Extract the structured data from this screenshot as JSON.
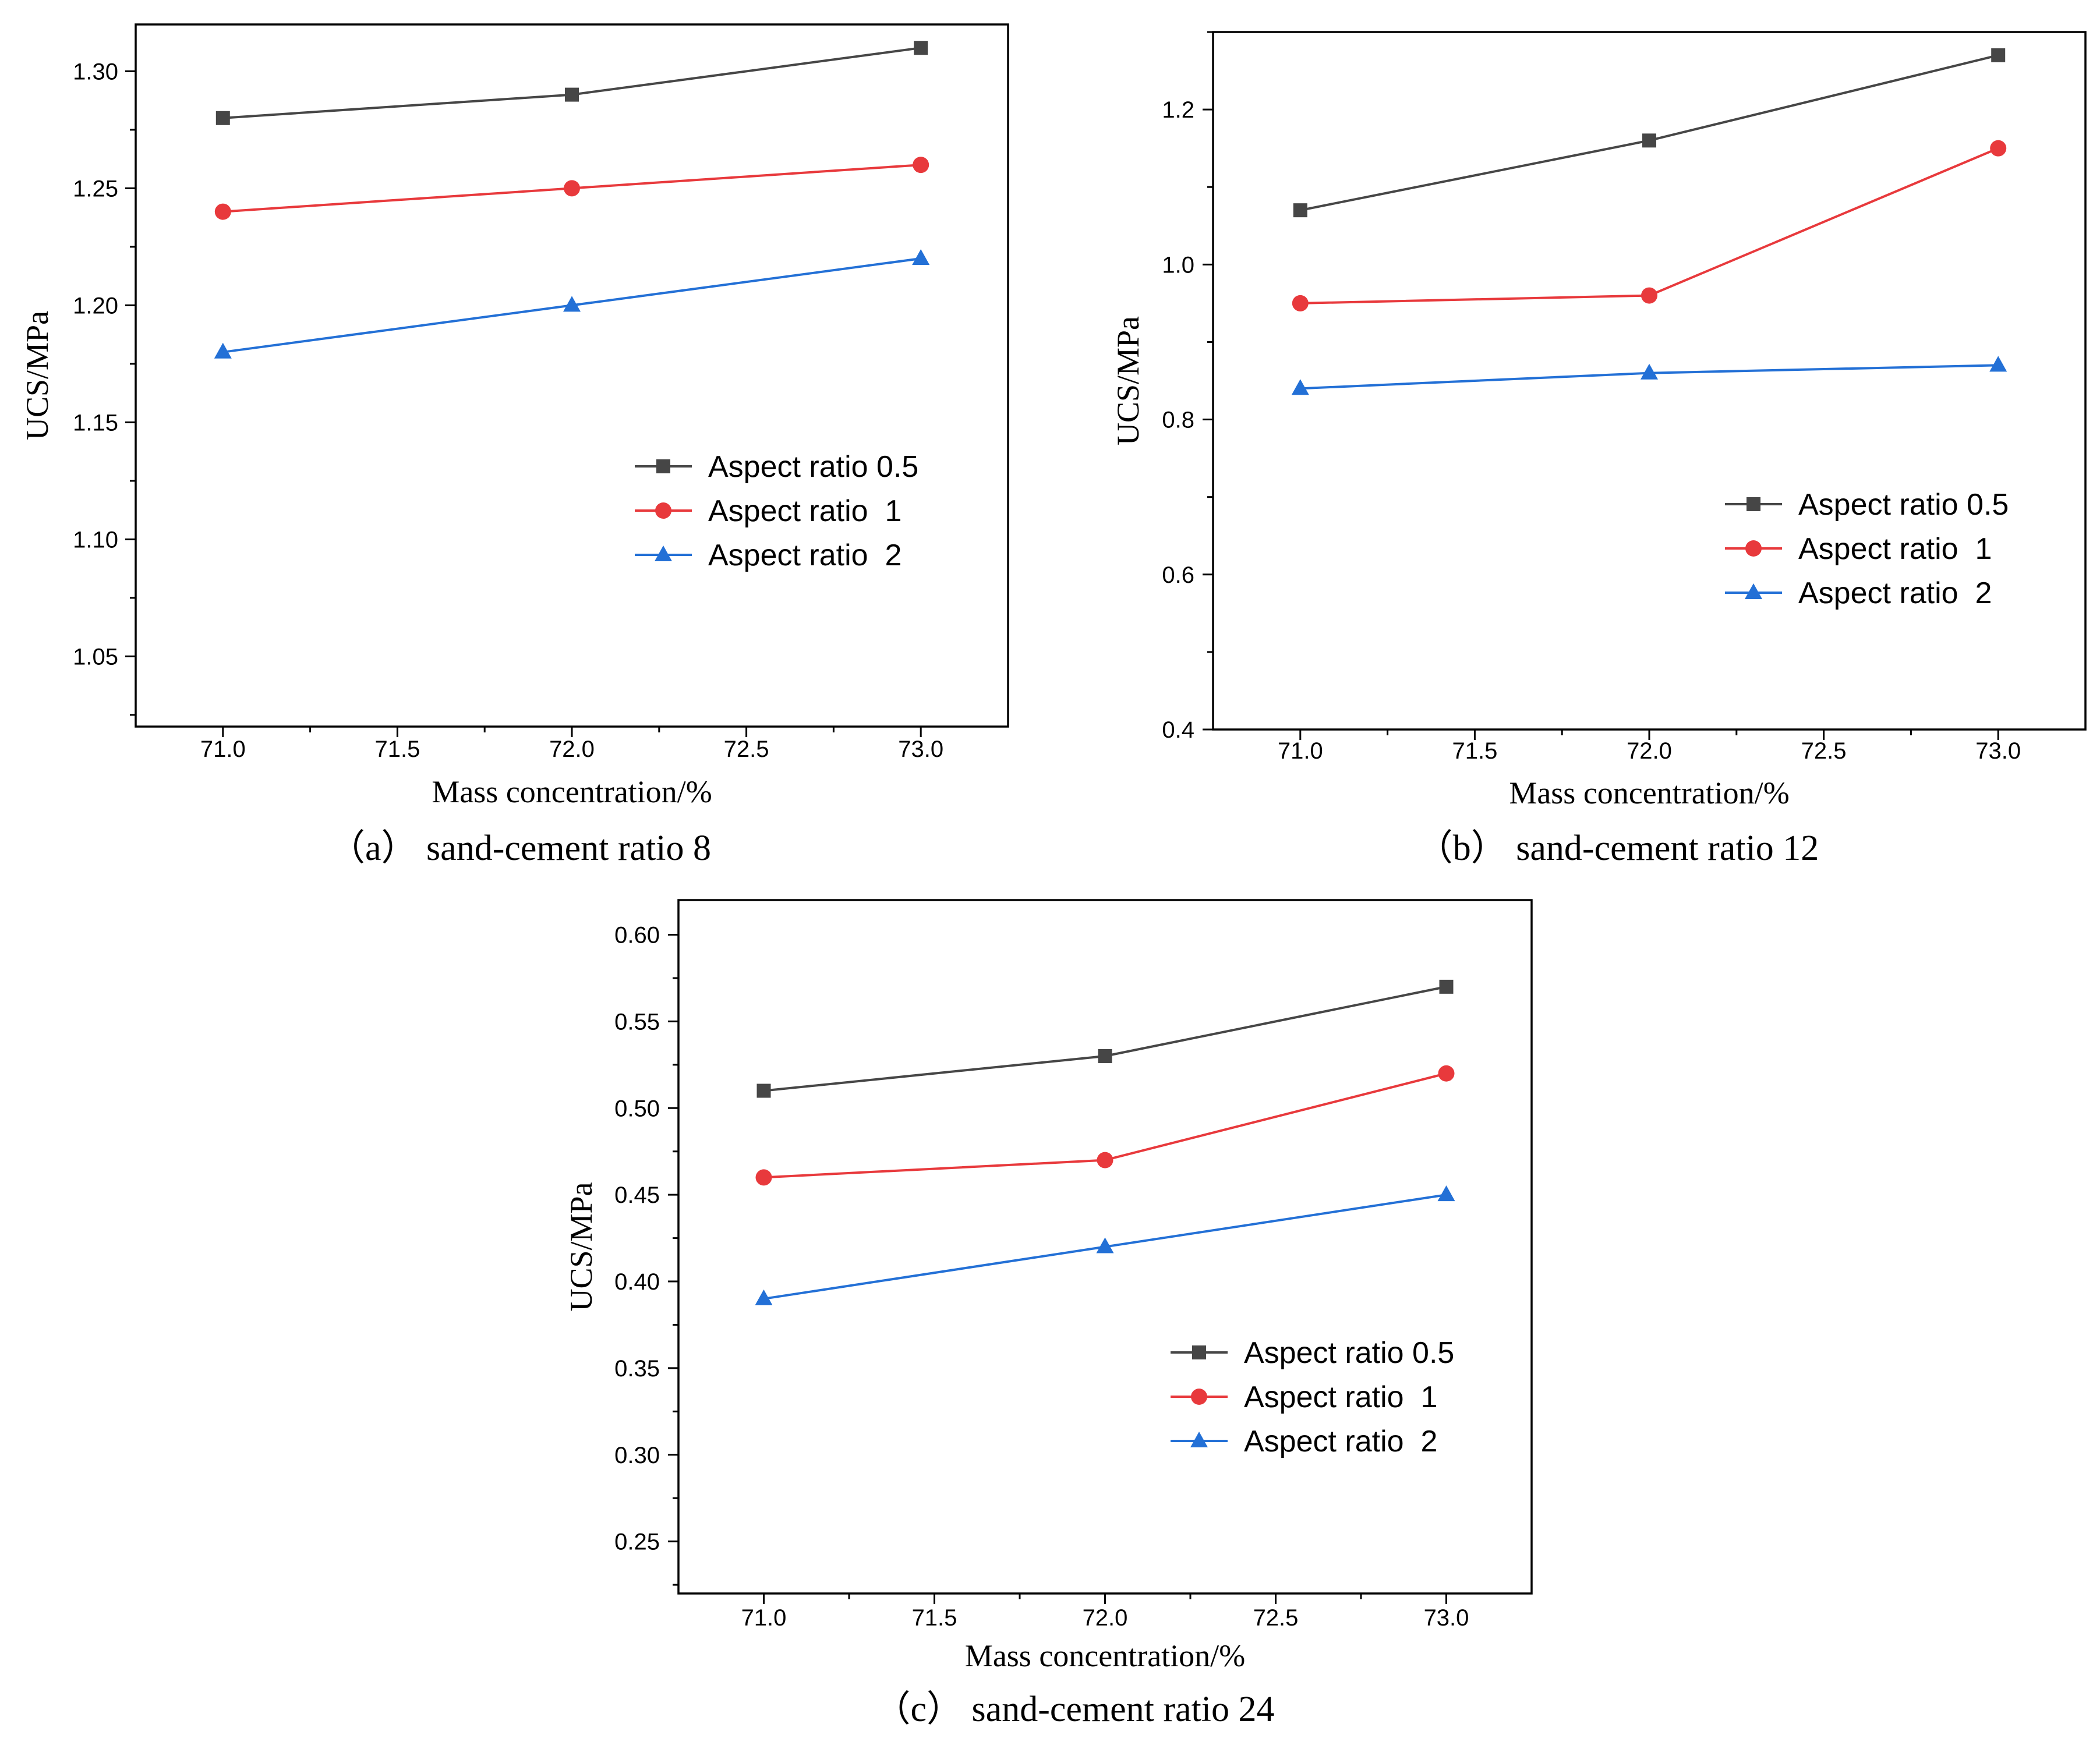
{
  "figure": {
    "description_free": true
  },
  "chart_data": [
    {
      "type": "line",
      "caption": "（a） sand-cement ratio 8",
      "title": "",
      "xlabel": "Mass concentration/%",
      "ylabel": "UCS/MPa",
      "xlim": [
        70.75,
        73.25
      ],
      "ylim": [
        1.02,
        1.32
      ],
      "xticks": [
        71.0,
        71.5,
        72.0,
        72.5,
        73.0
      ],
      "xtick_labels": [
        "71.0",
        "71.5",
        "72.0",
        "72.5",
        "73.0"
      ],
      "yticks": [
        1.05,
        1.1,
        1.15,
        1.2,
        1.25,
        1.3
      ],
      "ytick_labels": [
        "1.05",
        "1.10",
        "1.15",
        "1.20",
        "1.25",
        "1.30"
      ],
      "legend_position": "center-right",
      "x": [
        71.0,
        72.0,
        73.0
      ],
      "series": [
        {
          "name": "Aspect ratio 0.5",
          "marker": "square",
          "color": "#464646",
          "values": [
            1.28,
            1.29,
            1.31
          ]
        },
        {
          "name": "Aspect ratio  1",
          "marker": "circle",
          "color": "#e8393c",
          "values": [
            1.24,
            1.25,
            1.26
          ]
        },
        {
          "name": "Aspect ratio  2",
          "marker": "triangle",
          "color": "#2370d6",
          "values": [
            1.18,
            1.2,
            1.22
          ]
        }
      ]
    },
    {
      "type": "line",
      "caption": "（b） sand-cement ratio 12",
      "title": "",
      "xlabel": "Mass concentration/%",
      "ylabel": "UCS/MPa",
      "xlim": [
        70.75,
        73.25
      ],
      "ylim": [
        0.4,
        1.3
      ],
      "xticks": [
        71.0,
        71.5,
        72.0,
        72.5,
        73.0
      ],
      "xtick_labels": [
        "71.0",
        "71.5",
        "72.0",
        "72.5",
        "73.0"
      ],
      "yticks": [
        0.4,
        0.6,
        0.8,
        1.0,
        1.2
      ],
      "ytick_labels": [
        "0.4",
        "0.6",
        "0.8",
        "1.0",
        "1.2"
      ],
      "legend_position": "center-right",
      "x": [
        71.0,
        72.0,
        73.0
      ],
      "series": [
        {
          "name": "Aspect ratio 0.5",
          "marker": "square",
          "color": "#464646",
          "values": [
            1.07,
            1.16,
            1.27
          ]
        },
        {
          "name": "Aspect ratio  1",
          "marker": "circle",
          "color": "#e8393c",
          "values": [
            0.95,
            0.96,
            1.15
          ]
        },
        {
          "name": "Aspect ratio  2",
          "marker": "triangle",
          "color": "#2370d6",
          "values": [
            0.84,
            0.86,
            0.87
          ]
        }
      ]
    },
    {
      "type": "line",
      "caption": "（c） sand-cement ratio 24",
      "title": "",
      "xlabel": "Mass concentration/%",
      "ylabel": "UCS/MPa",
      "xlim": [
        70.75,
        73.25
      ],
      "ylim": [
        0.22,
        0.62
      ],
      "xticks": [
        71.0,
        71.5,
        72.0,
        72.5,
        73.0
      ],
      "xtick_labels": [
        "71.0",
        "71.5",
        "72.0",
        "72.5",
        "73.0"
      ],
      "yticks": [
        0.25,
        0.3,
        0.35,
        0.4,
        0.45,
        0.5,
        0.55,
        0.6
      ],
      "ytick_labels": [
        "0.25",
        "0.30",
        "0.35",
        "0.40",
        "0.45",
        "0.50",
        "0.55",
        "0.60"
      ],
      "legend_position": "lower-right",
      "x": [
        71.0,
        72.0,
        73.0
      ],
      "series": [
        {
          "name": "Aspect ratio 0.5",
          "marker": "square",
          "color": "#464646",
          "values": [
            0.51,
            0.53,
            0.57
          ]
        },
        {
          "name": "Aspect ratio  1",
          "marker": "circle",
          "color": "#e8393c",
          "values": [
            0.46,
            0.47,
            0.52
          ]
        },
        {
          "name": "Aspect ratio  2",
          "marker": "triangle",
          "color": "#2370d6",
          "values": [
            0.39,
            0.42,
            0.45
          ]
        }
      ]
    }
  ]
}
